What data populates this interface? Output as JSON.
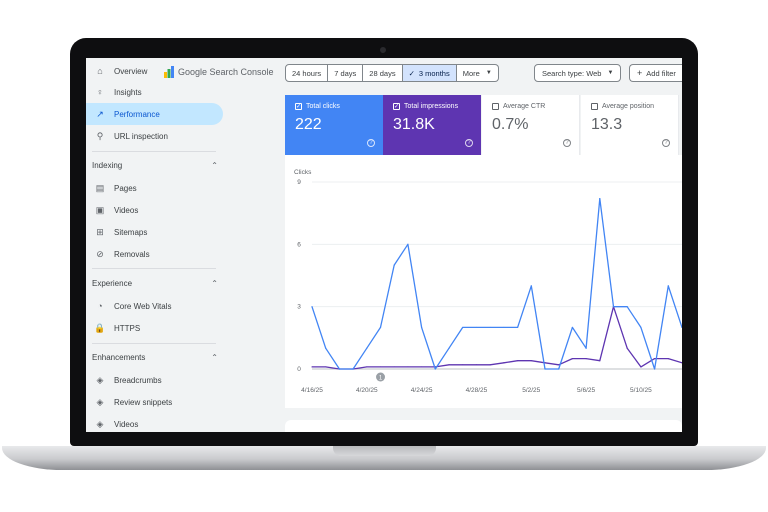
{
  "app": {
    "name": "Google Search Console"
  },
  "sidebar": {
    "top_items": [
      {
        "label": "Overview",
        "icon": "home-icon"
      },
      {
        "label": "Insights",
        "icon": "lightbulb-icon"
      },
      {
        "label": "Performance",
        "icon": "trending-up-icon",
        "active": true
      },
      {
        "label": "URL inspection",
        "icon": "search-icon"
      }
    ],
    "sections": [
      {
        "title": "Indexing",
        "items": [
          {
            "label": "Pages",
            "icon": "pages-icon"
          },
          {
            "label": "Videos",
            "icon": "video-icon"
          },
          {
            "label": "Sitemaps",
            "icon": "sitemap-icon"
          },
          {
            "label": "Removals",
            "icon": "visibility-off-icon"
          }
        ]
      },
      {
        "title": "Experience",
        "items": [
          {
            "label": "Core Web Vitals",
            "icon": "speed-icon"
          },
          {
            "label": "HTTPS",
            "icon": "lock-icon"
          }
        ]
      },
      {
        "title": "Enhancements",
        "items": [
          {
            "label": "Breadcrumbs",
            "icon": "layers-icon"
          },
          {
            "label": "Review snippets",
            "icon": "layers-icon"
          },
          {
            "label": "Videos",
            "icon": "layers-icon"
          }
        ]
      }
    ]
  },
  "toolbar": {
    "date_ranges": [
      "24 hours",
      "7 days",
      "28 days",
      "3 months"
    ],
    "selected_range": "3 months",
    "check_mark": "✓",
    "more_label": "More",
    "search_type": "Search type: Web",
    "add_filter": "Add filter",
    "plus": "+"
  },
  "metrics": [
    {
      "label": "Total clicks",
      "value": "222",
      "checked": true,
      "color": "#4285f4"
    },
    {
      "label": "Total impressions",
      "value": "31.8K",
      "checked": true,
      "color": "#5e35b1"
    },
    {
      "label": "Average CTR",
      "value": "0.7%",
      "checked": false,
      "color": "#00897b"
    },
    {
      "label": "Average position",
      "value": "13.3",
      "checked": false,
      "color": "#e8710a"
    }
  ],
  "help_glyph": "?",
  "chart_data": {
    "type": "line",
    "ylabel": "Clicks",
    "yticks": [
      0,
      3,
      6,
      9
    ],
    "ylim": [
      0,
      9
    ],
    "x_tick_labels": [
      "4/16/25",
      "4/20/25",
      "4/24/25",
      "4/28/25",
      "5/2/25",
      "5/6/25",
      "5/10/25"
    ],
    "x_tick_positions": [
      0,
      4,
      8,
      12,
      16,
      20,
      24
    ],
    "annotation": {
      "label": "1",
      "x": 5
    },
    "series": [
      {
        "name": "Total clicks",
        "color": "#4285f4",
        "values": [
          3,
          1,
          0,
          0,
          1,
          2,
          5,
          6,
          2,
          0,
          1,
          2,
          2,
          2,
          2,
          2,
          4,
          0,
          0,
          2,
          1,
          8.2,
          3,
          3,
          2,
          0,
          4,
          2
        ]
      },
      {
        "name": "Total impressions",
        "color": "#5e35b1",
        "values": [
          0.1,
          0.1,
          0,
          0,
          0.1,
          0.1,
          0.1,
          0.1,
          0.1,
          0.1,
          0.2,
          0.2,
          0.2,
          0.2,
          0.3,
          0.4,
          0.4,
          0.3,
          0.2,
          0.5,
          0.5,
          0.4,
          3,
          1,
          0.1,
          0.5,
          0.5,
          0.3
        ]
      }
    ]
  }
}
